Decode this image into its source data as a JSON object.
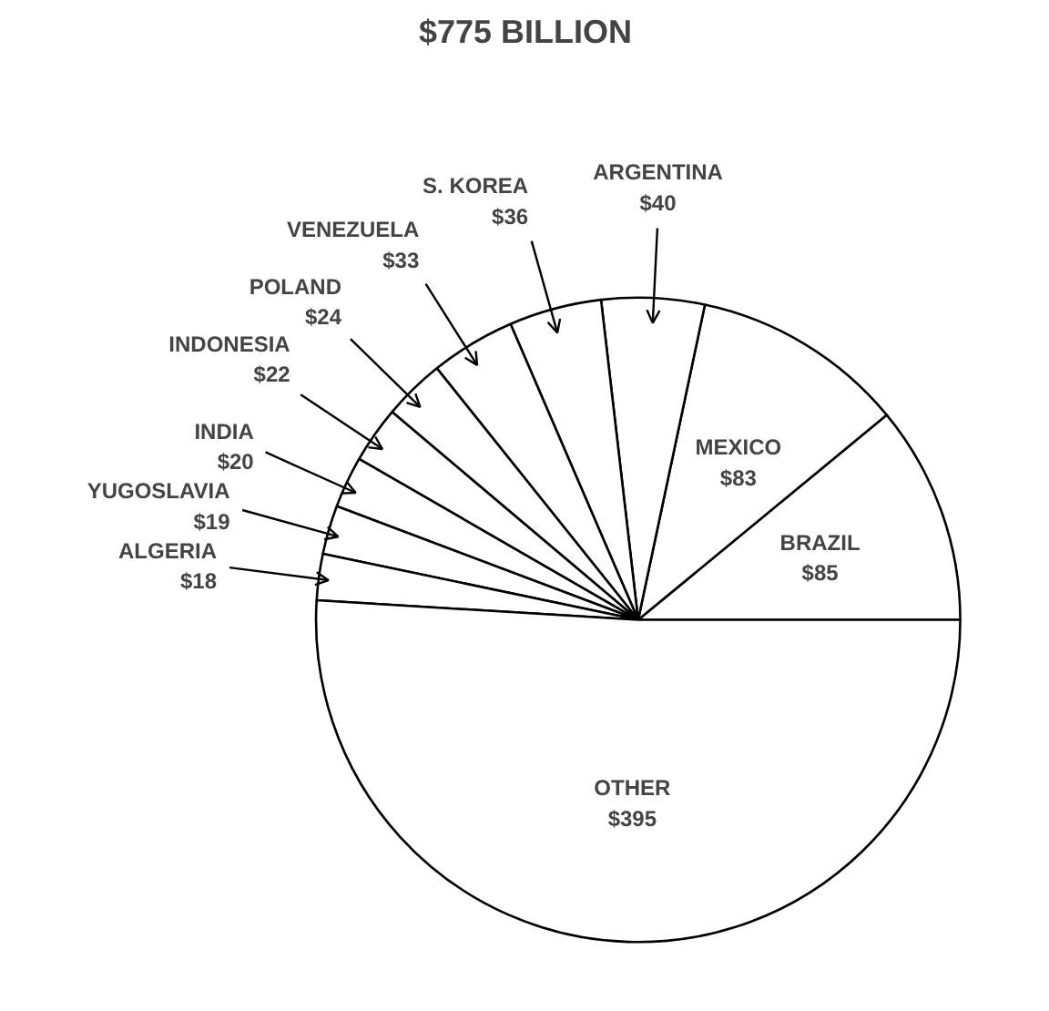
{
  "chart_data": {
    "type": "pie",
    "title": "$775 BILLION",
    "categories": [
      "BRAZIL",
      "MEXICO",
      "ARGENTINA",
      "S. KOREA",
      "VENEZUELA",
      "POLAND",
      "INDONESIA",
      "INDIA",
      "YUGOSLAVIA",
      "ALGERIA",
      "OTHER"
    ],
    "values": [
      85,
      83,
      40,
      36,
      33,
      24,
      22,
      20,
      19,
      18,
      395
    ],
    "value_labels": [
      "$85",
      "$83",
      "$40",
      "$36",
      "$33",
      "$24",
      "$22",
      "$20",
      "$19",
      "$18",
      "$395"
    ],
    "colors": [
      "#ffffff",
      "#ffffff",
      "#ffffff",
      "#ffffff",
      "#ffffff",
      "#ffffff",
      "#ffffff",
      "#ffffff",
      "#ffffff",
      "#ffffff",
      "#ffffff"
    ]
  }
}
